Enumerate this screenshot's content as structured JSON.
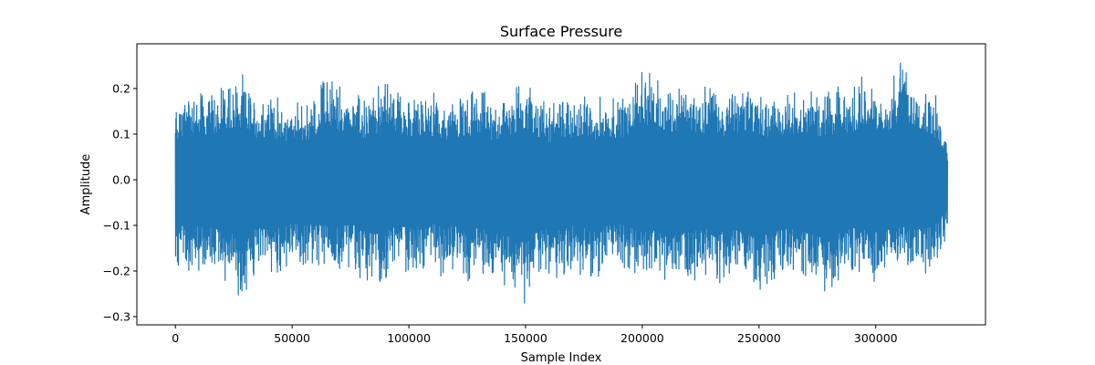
{
  "chart_data": {
    "type": "line",
    "title": "Surface Pressure",
    "xlabel": "Sample Index",
    "ylabel": "Amplitude",
    "xlim": [
      -16500,
      347000
    ],
    "ylim": [
      -0.318,
      0.298
    ],
    "xticks": [
      0,
      50000,
      100000,
      150000,
      200000,
      250000,
      300000
    ],
    "xtick_labels": [
      "0",
      "50000",
      "100000",
      "150000",
      "200000",
      "250000",
      "300000"
    ],
    "yticks": [
      -0.3,
      -0.2,
      -0.1,
      0.0,
      0.1,
      0.2
    ],
    "ytick_labels": [
      "−0.3",
      "−0.2",
      "−0.1",
      "0.0",
      "0.1",
      "0.2"
    ],
    "grid": false,
    "legend": "none",
    "series": [
      {
        "color": "#1f77b4",
        "x_range": [
          0,
          330750
        ],
        "envelope_x": [
          0,
          5000,
          10000,
          15000,
          20000,
          25000,
          28000,
          35000,
          40000,
          45000,
          50000,
          55000,
          60000,
          65000,
          70000,
          75000,
          80000,
          85000,
          90000,
          95000,
          100000,
          105000,
          110000,
          115000,
          120000,
          125000,
          130000,
          135000,
          140000,
          145000,
          150000,
          155000,
          160000,
          165000,
          170000,
          175000,
          180000,
          185000,
          190000,
          195000,
          200000,
          205000,
          210000,
          215000,
          220000,
          225000,
          230000,
          235000,
          240000,
          245000,
          250000,
          255000,
          260000,
          265000,
          270000,
          275000,
          280000,
          285000,
          290000,
          295000,
          300000,
          305000,
          310000,
          315000,
          320000,
          325000,
          330750
        ],
        "envelope_max": [
          0.18,
          0.21,
          0.22,
          0.2,
          0.23,
          0.24,
          0.24,
          0.19,
          0.2,
          0.18,
          0.17,
          0.18,
          0.19,
          0.26,
          0.22,
          0.23,
          0.19,
          0.2,
          0.24,
          0.21,
          0.2,
          0.19,
          0.2,
          0.18,
          0.2,
          0.19,
          0.22,
          0.18,
          0.19,
          0.21,
          0.24,
          0.2,
          0.17,
          0.2,
          0.19,
          0.21,
          0.18,
          0.2,
          0.19,
          0.21,
          0.27,
          0.22,
          0.23,
          0.21,
          0.23,
          0.2,
          0.24,
          0.19,
          0.21,
          0.23,
          0.21,
          0.19,
          0.2,
          0.21,
          0.22,
          0.2,
          0.2,
          0.21,
          0.22,
          0.25,
          0.2,
          0.22,
          0.27,
          0.26,
          0.23,
          0.2,
          0.12
        ],
        "envelope_min": [
          -0.2,
          -0.22,
          -0.21,
          -0.22,
          -0.23,
          -0.24,
          -0.28,
          -0.22,
          -0.23,
          -0.22,
          -0.2,
          -0.21,
          -0.2,
          -0.21,
          -0.22,
          -0.2,
          -0.23,
          -0.25,
          -0.24,
          -0.21,
          -0.22,
          -0.21,
          -0.2,
          -0.22,
          -0.21,
          -0.23,
          -0.22,
          -0.24,
          -0.25,
          -0.27,
          -0.29,
          -0.24,
          -0.22,
          -0.23,
          -0.21,
          -0.22,
          -0.24,
          -0.21,
          -0.2,
          -0.22,
          -0.24,
          -0.23,
          -0.26,
          -0.25,
          -0.24,
          -0.23,
          -0.22,
          -0.24,
          -0.23,
          -0.25,
          -0.27,
          -0.24,
          -0.23,
          -0.22,
          -0.24,
          -0.26,
          -0.27,
          -0.24,
          -0.22,
          -0.23,
          -0.24,
          -0.23,
          -0.22,
          -0.21,
          -0.23,
          -0.21,
          -0.14
        ]
      }
    ]
  }
}
